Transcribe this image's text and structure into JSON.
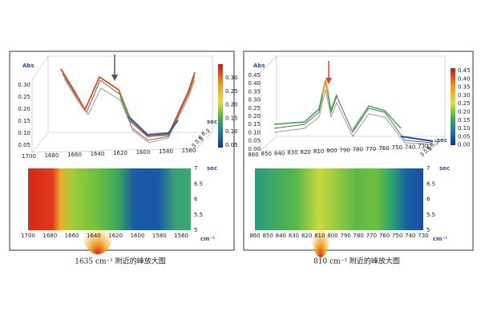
{
  "panels": [
    {
      "abs_label": "Abs",
      "yticks": [
        "0.30",
        "0.25",
        "0.20",
        "0.15",
        "0.10",
        "0.05"
      ],
      "xticks": [
        "1700",
        "1680",
        "1660",
        "1640",
        "1620",
        "1600",
        "1580",
        "1560"
      ],
      "colorbar_ticks": [
        "0.30",
        "0.25",
        "0.20",
        "0.15",
        "0.10",
        "0.05"
      ],
      "sec_label": "sec",
      "sec_ticks": [
        "6.5",
        "6",
        "5.5",
        "5"
      ],
      "heatmap_xticks": [
        "1700",
        "1680",
        "1660",
        "1640",
        "1620",
        "1600",
        "1580",
        "1560"
      ],
      "heatmap_yticks": [
        "7",
        "6.5",
        "6",
        "5.5",
        "5"
      ],
      "heatmap_sec_label": "sec",
      "unit": "cm⁻¹",
      "caption": "1635 cm⁻¹ 附近的峰放大图"
    },
    {
      "abs_label": "Abs",
      "yticks": [
        "0.45",
        "0.40",
        "0.35",
        "0.30",
        "0.25",
        "0.20",
        "0.15",
        "0.10",
        "0.05",
        "0.00"
      ],
      "xticks": [
        "860",
        "850",
        "840",
        "830",
        "820",
        "810",
        "800",
        "790",
        "780",
        "770",
        "760",
        "750",
        "740",
        "730"
      ],
      "colorbar_ticks": [
        "0.45",
        "0.40",
        "0.35",
        "0.30",
        "0.25",
        "0.20",
        "0.15",
        "0.10",
        "0.05",
        "0.00"
      ],
      "sec_label": "sec",
      "sec_ticks": [
        "6.5",
        "6",
        "5.5",
        "5"
      ],
      "heatmap_xticks": [
        "860",
        "850",
        "840",
        "830",
        "820",
        "810",
        "800",
        "790",
        "780",
        "770",
        "760",
        "750",
        "740",
        "730"
      ],
      "heatmap_yticks": [
        "7",
        "6.5",
        "6",
        "5.5",
        "5"
      ],
      "heatmap_sec_label": "sec",
      "unit": "cm⁻¹",
      "caption": "810 cm⁻¹ 附近的峰放大图"
    }
  ]
}
